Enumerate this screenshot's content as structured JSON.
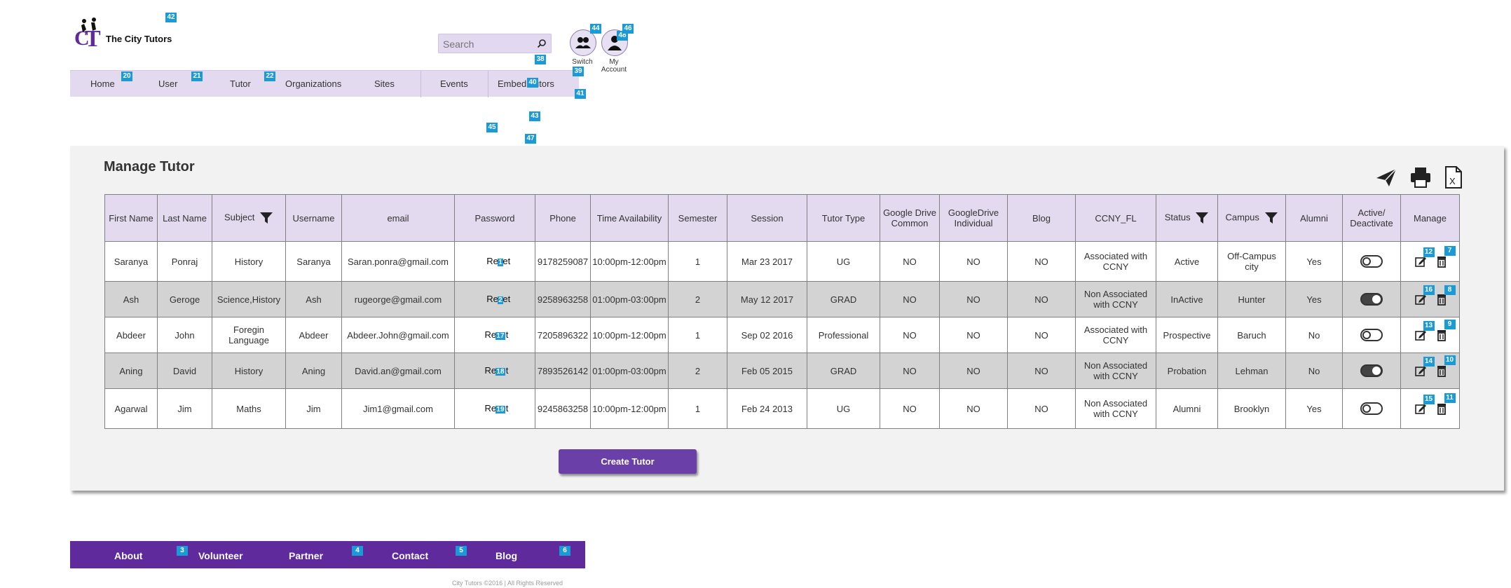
{
  "brand": {
    "name": "The City Tutors",
    "logo_letters": "CT"
  },
  "search": {
    "placeholder": "Search"
  },
  "header_buttons": {
    "switch_label": "Switch",
    "account_label_1": "My",
    "account_label_2": "Account"
  },
  "nav": {
    "items": [
      "Home",
      "User",
      "Tutor",
      "Organizations",
      "Sites",
      "Events",
      "Embed Tutors"
    ]
  },
  "page": {
    "title": "Manage Tutor"
  },
  "table": {
    "headers": {
      "first_name": "First Name",
      "last_name": "Last Name",
      "subject": "Subject",
      "username": "Username",
      "email": "email",
      "password": "Password",
      "phone": "Phone",
      "time": "Time Availability",
      "semester": "Semester",
      "session": "Session",
      "tutor_type": "Tutor Type",
      "gdrive_common_1": "Google Drive",
      "gdrive_common_2": "Common",
      "gdrive_indiv_1": "GoogleDrive",
      "gdrive_indiv_2": "Individual",
      "blog": "Blog",
      "ccny": "CCNY_FL",
      "status": "Status",
      "campus": "Campus",
      "alumni": "Alumni",
      "active_1": "Active/",
      "active_2": "Deactivate",
      "manage": "Manage"
    },
    "rows": [
      {
        "first": "Saranya",
        "last": "Ponraj",
        "subject": "History",
        "username": "Saranya",
        "email": "Saran.ponra@gmail.com",
        "password": "Reset",
        "phone": "9178259087",
        "time": "10:00pm-12:00pm",
        "semester": "1",
        "session": "Mar 23 2017",
        "type": "UG",
        "gdc": "NO",
        "gdi": "NO",
        "blog": "NO",
        "ccny_1": "Associated with",
        "ccny_2": "CCNY",
        "status": "Active",
        "campus": "Off-Campus city",
        "alumni": "Yes",
        "active": false
      },
      {
        "first": "Ash",
        "last": "Geroge",
        "subject": "Science,History",
        "username": "Ash",
        "email": "rugeorge@gmail.com",
        "password": "Reset",
        "phone": "9258963258",
        "time": "01:00pm-03:00pm",
        "semester": "2",
        "session": "May 12 2017",
        "type": "GRAD",
        "gdc": "NO",
        "gdi": "NO",
        "blog": "NO",
        "ccny_1": "Non Associated",
        "ccny_2": "with CCNY",
        "status": "InActive",
        "campus": "Hunter",
        "alumni": "Yes",
        "active": true
      },
      {
        "first": "Abdeer",
        "last": "John",
        "subject_1": "Foregin",
        "subject_2": "Language",
        "username": "Abdeer",
        "email": "Abdeer.John@gmail.com",
        "password": "Reset",
        "phone": "7205896322",
        "time": "10:00pm-12:00pm",
        "semester": "1",
        "session": "Sep 02 2016",
        "type": "Professional",
        "gdc": "NO",
        "gdi": "NO",
        "blog": "NO",
        "ccny_1": "Associated with",
        "ccny_2": "CCNY",
        "status": "Prospective",
        "campus": "Baruch",
        "alumni": "No",
        "active": false
      },
      {
        "first": "Aning",
        "last": "David",
        "subject": "History",
        "username": "Aning",
        "email": "David.an@gmail.com",
        "password": "Reset",
        "phone": "7893526142",
        "time": "01:00pm-03:00pm",
        "semester": "2",
        "session": "Feb 05 2015",
        "type": "GRAD",
        "gdc": "NO",
        "gdi": "NO",
        "blog": "NO",
        "ccny_1": "Non Associated",
        "ccny_2": "with CCNY",
        "status": "Probation",
        "campus": "Lehman",
        "alumni": "No",
        "active": true
      },
      {
        "first": "Agarwal",
        "last": "Jim",
        "subject": "Maths",
        "username": "Jim",
        "email": "Jim1@gmail.com",
        "password": "Reset",
        "phone": "9245863258",
        "time": "10:00pm-12:00pm",
        "semester": "1",
        "session": "Feb 24 2013",
        "type": "UG",
        "gdc": "NO",
        "gdi": "NO",
        "blog": "NO",
        "ccny_1": "Non Associated",
        "ccny_2": "with CCNY",
        "status": "Alumni",
        "campus": "Brooklyn",
        "alumni": "Yes",
        "active": false
      }
    ]
  },
  "buttons": {
    "create_tutor": "Create Tutor"
  },
  "footer": {
    "items": [
      "About",
      "Volunteer",
      "Partner",
      "Contact",
      "Blog"
    ],
    "copyright": "City Tutors ©2016 | All Rights Reserved"
  },
  "markers": [
    "42",
    "20",
    "21",
    "22",
    "40",
    "38",
    "39",
    "41",
    "44",
    "48",
    "46",
    "45",
    "43",
    "47",
    "1",
    "2",
    "17",
    "18",
    "19",
    "12",
    "7",
    "16",
    "8",
    "13",
    "9",
    "14",
    "10",
    "15",
    "11",
    "3",
    "4",
    "5",
    "6"
  ],
  "icons": {
    "search": "search-icon",
    "switch": "users-icon",
    "account": "user-icon",
    "send": "send-icon",
    "print": "print-icon",
    "excel": "excel-icon",
    "filter": "filter-icon",
    "edit": "edit-icon",
    "delete": "delete-icon"
  },
  "colors": {
    "accent": "#6b3fa8",
    "footer": "#5e2a9c",
    "nav_bg": "#e3daf0",
    "marker": "#1a9ad6"
  }
}
